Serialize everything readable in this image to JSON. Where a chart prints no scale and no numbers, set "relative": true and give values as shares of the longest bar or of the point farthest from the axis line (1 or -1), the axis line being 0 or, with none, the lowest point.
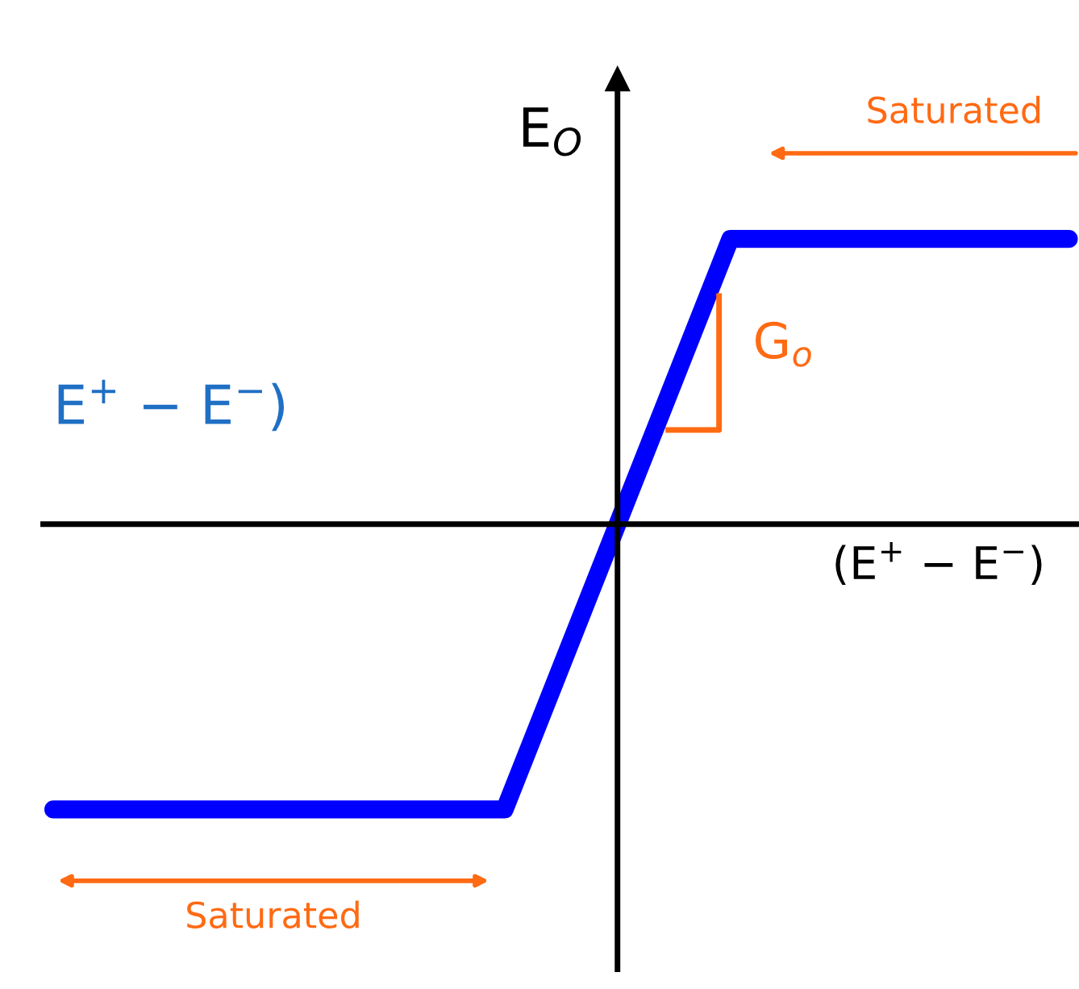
{
  "chart_data": {
    "type": "line",
    "relative": true,
    "ylabel": "E$_{O}$",
    "xlabel": "(E$^{+}$ − E$^{−}$)",
    "categories": [
      null,
      null,
      null,
      null,
      null,
      null,
      null,
      null,
      null,
      null
    ],
    "series": [
      {
        "color": "#0000ff",
        "values": [
          -1,
          -1,
          -1,
          -1,
          -1,
          0,
          1,
          1,
          1,
          1
        ]
      }
    ],
    "annotations": [
      "Saturated",
      "Saturated",
      "G$_{o}$",
      "E$^{+}$ − E$^{−}$)"
    ],
    "legend": false,
    "line_style": "solid"
  }
}
